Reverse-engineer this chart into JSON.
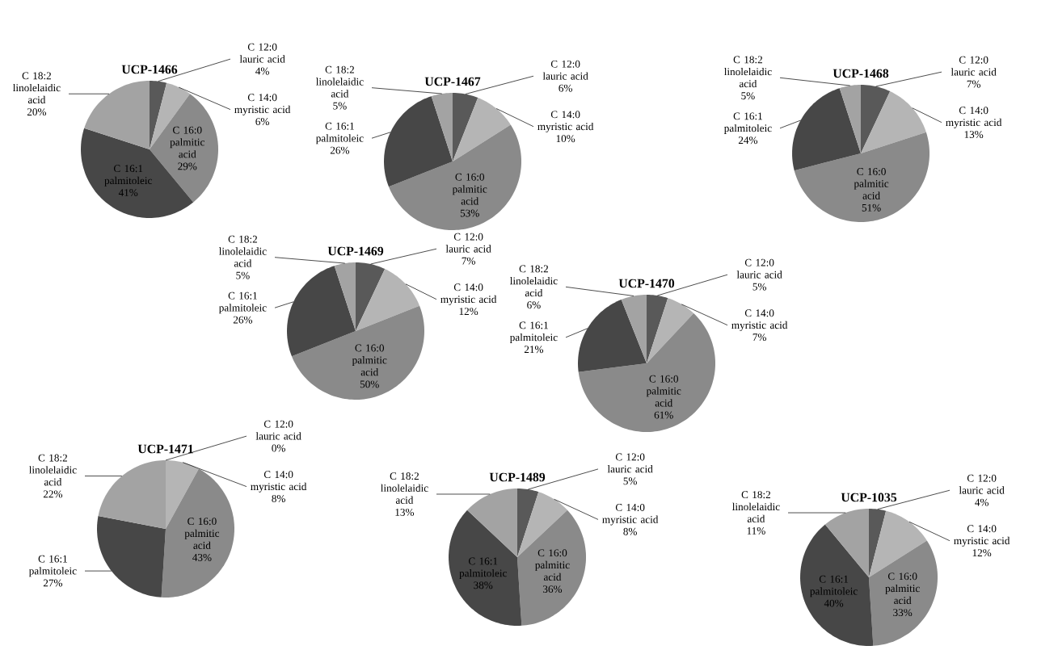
{
  "chart_data": [
    {
      "type": "pie",
      "title": "UCP-1466",
      "categories": [
        "C 12:0 lauric acid",
        "C 14:0 myristic acid",
        "C 16:0 palmitic acid",
        "C 16:1 palmitoleic",
        "C 18:2 linolelaidic acid"
      ],
      "values": [
        4,
        6,
        29,
        41,
        20
      ],
      "colors": [
        "#595959",
        "#b5b5b5",
        "#8a8a8a",
        "#474747",
        "#a3a3a3"
      ],
      "value_labels": [
        "4%",
        "6%",
        "29%",
        "41%",
        "20%"
      ]
    },
    {
      "type": "pie",
      "title": "UCP-1467",
      "categories": [
        "C 12:0 lauric acid",
        "C 14:0 myristic acid",
        "C 16:0 palmitic acid",
        "C 16:1 palmitoleic",
        "C 18:2 linolelaidic acid"
      ],
      "values": [
        6,
        10,
        53,
        26,
        5
      ],
      "colors": [
        "#595959",
        "#b5b5b5",
        "#8a8a8a",
        "#474747",
        "#a3a3a3"
      ],
      "value_labels": [
        "6%",
        "10%",
        "53%",
        "26%",
        "5%"
      ]
    },
    {
      "type": "pie",
      "title": "UCP-1468",
      "categories": [
        "C 12:0 lauric acid",
        "C 14:0 myristic acid",
        "C 16:0 palmitic acid",
        "C 16:1 palmitoleic",
        "C 18:2 linolelaidic acid"
      ],
      "values": [
        7,
        13,
        51,
        24,
        5
      ],
      "colors": [
        "#595959",
        "#b5b5b5",
        "#8a8a8a",
        "#474747",
        "#a3a3a3"
      ],
      "value_labels": [
        "7%",
        "13%",
        "51%",
        "24%",
        "5%"
      ]
    },
    {
      "type": "pie",
      "title": "UCP-1469",
      "categories": [
        "C 12:0 lauric acid",
        "C 14:0 myristic acid",
        "C 16:0 palmitic acid",
        "C 16:1 palmitoleic",
        "C 18:2 linolelaidic acid"
      ],
      "values": [
        7,
        12,
        50,
        26,
        5
      ],
      "colors": [
        "#595959",
        "#b5b5b5",
        "#8a8a8a",
        "#474747",
        "#a3a3a3"
      ],
      "value_labels": [
        "7%",
        "12%",
        "50%",
        "26%",
        "5%"
      ]
    },
    {
      "type": "pie",
      "title": "UCP-1470",
      "categories": [
        "C 12:0 lauric acid",
        "C 14:0 myristic acid",
        "C 16:0 palmitic acid",
        "C 16:1 palmitoleic",
        "C 18:2 linolelaidic acid"
      ],
      "values": [
        5,
        7,
        61,
        21,
        6
      ],
      "colors": [
        "#595959",
        "#b5b5b5",
        "#8a8a8a",
        "#474747",
        "#a3a3a3"
      ],
      "value_labels": [
        "5%",
        "7%",
        "61%",
        "21%",
        "6%"
      ]
    },
    {
      "type": "pie",
      "title": "UCP-1471",
      "categories": [
        "C 12:0 lauric acid",
        "C 14:0 myristic acid",
        "C 16:0 palmitic acid",
        "C 16:1 palmitoleic",
        "C 18:2 linolelaidic acid"
      ],
      "values": [
        0,
        8,
        43,
        27,
        22
      ],
      "colors": [
        "#595959",
        "#b5b5b5",
        "#8a8a8a",
        "#474747",
        "#a3a3a3"
      ],
      "value_labels": [
        "0%",
        "8%",
        "43%",
        "27%",
        "22%"
      ]
    },
    {
      "type": "pie",
      "title": "UCP-1489",
      "categories": [
        "C 12:0 lauric acid",
        "C 14:0 myristic acid",
        "C 16:0 palmitic acid",
        "C 16:1 palmitoleic",
        "C 18:2 linolelaidic acid"
      ],
      "values": [
        5,
        8,
        36,
        38,
        13
      ],
      "colors": [
        "#595959",
        "#b5b5b5",
        "#8a8a8a",
        "#474747",
        "#a3a3a3"
      ],
      "value_labels": [
        "5%",
        "8%",
        "36%",
        "38%",
        "13%"
      ]
    },
    {
      "type": "pie",
      "title": "UCP-1035",
      "categories": [
        "C 12:0 lauric acid",
        "C 14:0 myristic acid",
        "C 16:0 palmitic acid",
        "C 16:1 palmitoleic",
        "C 18:2 linolelaidic acid"
      ],
      "values": [
        4,
        12,
        33,
        40,
        11
      ],
      "colors": [
        "#595959",
        "#b5b5b5",
        "#8a8a8a",
        "#474747",
        "#a3a3a3"
      ],
      "value_labels": [
        "4%",
        "12%",
        "33%",
        "40%",
        "11%"
      ]
    }
  ]
}
